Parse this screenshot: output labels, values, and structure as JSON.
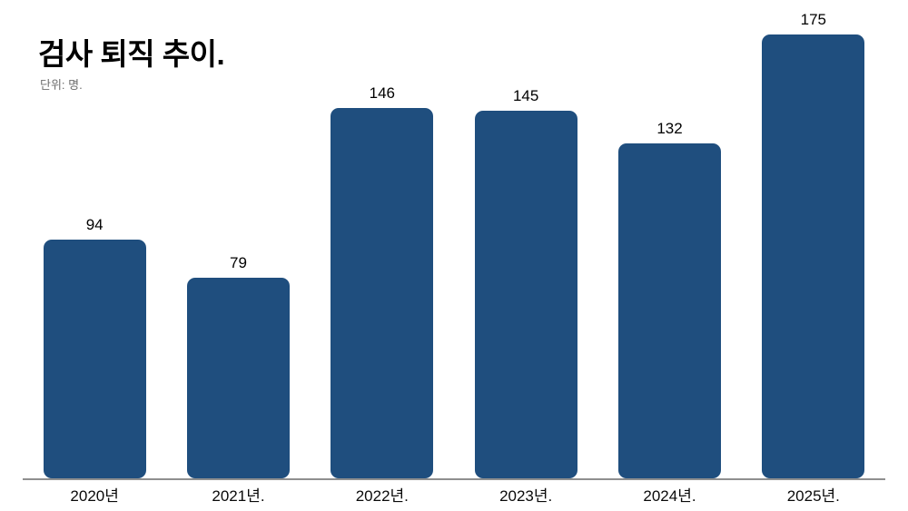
{
  "header": {
    "title": "검사 퇴직 추이.",
    "subtitle": "단위: 명."
  },
  "chart_data": {
    "type": "bar",
    "title": "검사 퇴직 추이.",
    "subtitle": "단위: 명.",
    "categories": [
      "2020년",
      "2021년.",
      "2022년.",
      "2023년.",
      "2024년.",
      "2025년."
    ],
    "values": [
      94,
      79,
      146,
      145,
      132,
      175
    ],
    "xlabel": "",
    "ylabel": "",
    "ylim": [
      0,
      185
    ],
    "grid": false,
    "legend_position": "none",
    "value_labels_shown": true,
    "colors": {
      "bar": "#1f4e7e",
      "axis_line": "#8f8f8f",
      "value_label": "#000000",
      "category_label": "#0a0a0a",
      "subtitle": "#6e6e6e",
      "background": "#ffffff"
    }
  }
}
